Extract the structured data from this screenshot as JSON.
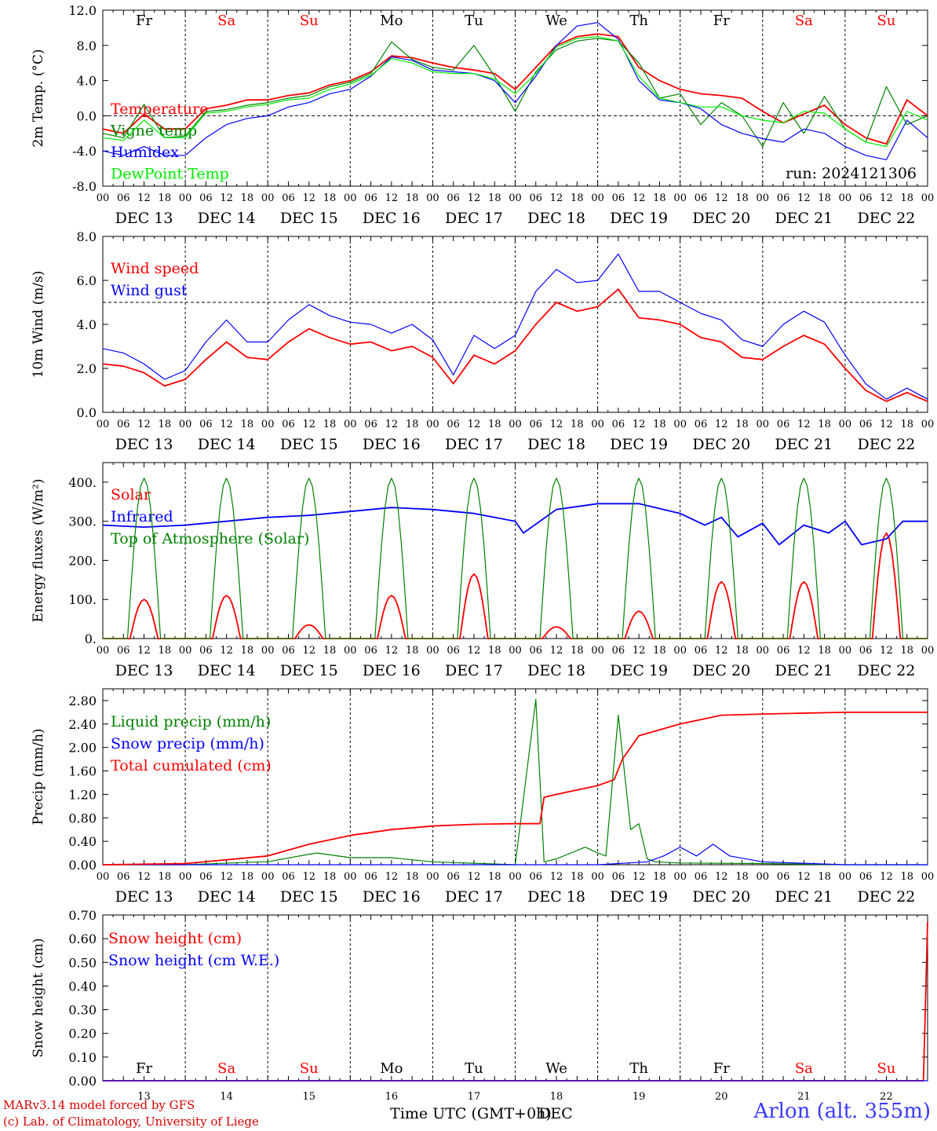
{
  "page": {
    "footer": {
      "credit_line1": "MARv3.14 model forced by GFS",
      "credit_line2": "(c) Lab. of Climatology, University of Liege",
      "station": "Arlon (alt. 355m)",
      "time_axis_label": "Time UTC (GMT+0h)",
      "month_label": "DEC"
    },
    "colors": {
      "red": "#ff0000",
      "darkgreen": "#008000",
      "blue": "#0000ff",
      "lightgreen": "#00ee00"
    }
  },
  "chart_data": [
    {
      "id": "temp",
      "type": "line",
      "ylabel": "2m Temp. (°C)",
      "ylim": [
        -8,
        12
      ],
      "yticks": [
        "-8.0",
        "-4.0",
        "0.0",
        "4.0",
        "8.0",
        "12.0"
      ],
      "ytick_values": [
        -8,
        -4,
        0,
        4,
        8,
        12
      ],
      "dashed_y": 0,
      "annotation": "run: 2024121306",
      "day_names": [
        "Fr",
        "Sa",
        "Su",
        "Mo",
        "Tu",
        "We",
        "Th",
        "Fr",
        "Sa",
        "Su"
      ],
      "weekend_flags": [
        false,
        true,
        true,
        false,
        false,
        false,
        false,
        false,
        true,
        true
      ],
      "day_labels": [
        "DEC 13",
        "DEC 14",
        "DEC 15",
        "DEC 16",
        "DEC 17",
        "DEC 18",
        "DEC 19",
        "DEC 20",
        "DEC 21",
        "DEC 22"
      ],
      "hour_labels": [
        "00",
        "06",
        "12",
        "18"
      ],
      "x_unit": "days from DEC 13 00UTC",
      "series": [
        {
          "name": "Temperature",
          "color": "#ff0000",
          "x": [
            0,
            0.25,
            0.5,
            0.75,
            1.0,
            1.25,
            1.5,
            1.75,
            2.0,
            2.25,
            2.5,
            2.75,
            3.0,
            3.25,
            3.5,
            3.75,
            4.0,
            4.25,
            4.5,
            4.75,
            5.0,
            5.25,
            5.5,
            5.75,
            6.0,
            6.25,
            6.5,
            6.75,
            7.0,
            7.25,
            7.5,
            7.75,
            8.0,
            8.25,
            8.5,
            8.75,
            9.0,
            9.25,
            9.5,
            9.75,
            10.0
          ],
          "values": [
            -1.5,
            -2.0,
            0.2,
            -1.5,
            -1.5,
            0.8,
            1.2,
            1.8,
            1.8,
            2.3,
            2.6,
            3.5,
            4.0,
            5.0,
            6.8,
            6.6,
            6.0,
            5.5,
            5.2,
            4.8,
            3.0,
            5.5,
            8.0,
            9.0,
            9.3,
            9.0,
            5.5,
            4.0,
            3.0,
            2.5,
            2.3,
            2.0,
            0.5,
            -0.8,
            0.2,
            1.2,
            -1.0,
            -2.5,
            -3.2,
            1.8,
            0.0
          ]
        },
        {
          "name": "Vigne temp",
          "color": "#008000",
          "x": [
            0,
            0.25,
            0.5,
            0.75,
            1.0,
            1.25,
            1.5,
            1.75,
            2.0,
            2.25,
            2.5,
            2.75,
            3.0,
            3.25,
            3.5,
            3.75,
            4.0,
            4.25,
            4.5,
            4.75,
            5.0,
            5.25,
            5.5,
            5.75,
            6.0,
            6.25,
            6.5,
            6.75,
            7.0,
            7.25,
            7.5,
            7.75,
            8.0,
            8.25,
            8.5,
            8.75,
            9.0,
            9.25,
            9.5,
            9.75,
            10.0
          ],
          "values": [
            -2.0,
            -2.5,
            1.3,
            -2.5,
            -2.3,
            0.5,
            0.7,
            1.2,
            1.5,
            2.0,
            2.3,
            3.3,
            3.8,
            4.8,
            8.4,
            6.4,
            5.5,
            5.2,
            8.0,
            4.5,
            0.5,
            5.0,
            7.5,
            8.5,
            8.8,
            8.5,
            6.0,
            2.0,
            2.5,
            -1.0,
            1.5,
            0.0,
            -3.5,
            1.5,
            -2.0,
            2.2,
            -1.5,
            -3.0,
            3.3,
            -1.0,
            0.0
          ]
        },
        {
          "name": "Humidex",
          "color": "#0000ff",
          "x": [
            0,
            0.25,
            0.5,
            0.75,
            1.0,
            1.25,
            1.5,
            1.75,
            2.0,
            2.25,
            2.5,
            2.75,
            3.0,
            3.25,
            3.5,
            3.75,
            4.0,
            4.25,
            4.5,
            4.75,
            5.0,
            5.25,
            5.5,
            5.75,
            6.0,
            6.25,
            6.5,
            6.75,
            7.0,
            7.25,
            7.5,
            7.75,
            8.0,
            8.25,
            8.5,
            8.75,
            9.0,
            9.25,
            9.5,
            9.75,
            10.0
          ],
          "values": [
            -4.0,
            -4.5,
            -3.5,
            -4.5,
            -4.5,
            -2.5,
            -1.0,
            -0.3,
            0.0,
            1.0,
            1.5,
            2.5,
            3.0,
            4.5,
            6.7,
            6.3,
            5.2,
            5.0,
            4.8,
            4.0,
            1.5,
            4.5,
            8.0,
            10.2,
            10.6,
            8.7,
            4.0,
            1.8,
            1.5,
            0.8,
            -1.0,
            -2.0,
            -2.6,
            -3.0,
            -1.5,
            -2.0,
            -3.5,
            -4.5,
            -5.0,
            -0.5,
            -2.5
          ]
        },
        {
          "name": "DewPoint Temp",
          "color": "#00ee00",
          "x": [
            0,
            0.25,
            0.5,
            0.75,
            1.0,
            1.25,
            1.5,
            1.75,
            2.0,
            2.25,
            2.5,
            2.75,
            3.0,
            3.25,
            3.5,
            3.75,
            4.0,
            4.25,
            4.5,
            4.75,
            5.0,
            5.25,
            5.5,
            5.75,
            6.0,
            6.25,
            6.5,
            6.75,
            7.0,
            7.25,
            7.5,
            7.75,
            8.0,
            8.25,
            8.5,
            8.75,
            9.0,
            9.25,
            9.5,
            9.75,
            10.0
          ],
          "values": [
            -2.5,
            -2.8,
            -0.5,
            -2.5,
            -2.5,
            0.3,
            0.5,
            1.0,
            1.3,
            1.8,
            2.0,
            3.0,
            3.6,
            4.6,
            6.5,
            6.0,
            5.0,
            4.8,
            4.8,
            4.2,
            2.5,
            4.8,
            7.8,
            8.8,
            9.0,
            8.5,
            4.5,
            2.0,
            1.5,
            1.0,
            1.0,
            0.0,
            -0.5,
            -0.8,
            0.5,
            0.3,
            -1.5,
            -3.0,
            -3.5,
            0.5,
            -0.5
          ]
        }
      ]
    },
    {
      "id": "wind",
      "type": "line",
      "ylabel": "10m Wind (m/s)",
      "ylim": [
        0,
        8
      ],
      "yticks": [
        "0.0",
        "2.0",
        "4.0",
        "6.0",
        "8.0"
      ],
      "ytick_values": [
        0,
        2,
        4,
        6,
        8
      ],
      "dashed_y": 5,
      "day_labels": [
        "DEC 13",
        "DEC 14",
        "DEC 15",
        "DEC 16",
        "DEC 17",
        "DEC 18",
        "DEC 19",
        "DEC 20",
        "DEC 21",
        "DEC 22"
      ],
      "hour_labels": [
        "00",
        "06",
        "12",
        "18"
      ],
      "series": [
        {
          "name": "Wind speed",
          "color": "#ff0000",
          "x": [
            0,
            0.25,
            0.5,
            0.75,
            1.0,
            1.25,
            1.5,
            1.75,
            2.0,
            2.25,
            2.5,
            2.75,
            3.0,
            3.25,
            3.5,
            3.75,
            4.0,
            4.25,
            4.5,
            4.75,
            5.0,
            5.25,
            5.5,
            5.75,
            6.0,
            6.25,
            6.5,
            6.75,
            7.0,
            7.25,
            7.5,
            7.75,
            8.0,
            8.25,
            8.5,
            8.75,
            9.0,
            9.25,
            9.5,
            9.75,
            10.0
          ],
          "values": [
            2.2,
            2.1,
            1.8,
            1.2,
            1.5,
            2.4,
            3.2,
            2.5,
            2.4,
            3.2,
            3.8,
            3.4,
            3.1,
            3.2,
            2.8,
            3.0,
            2.5,
            1.3,
            2.6,
            2.2,
            2.8,
            4.0,
            5.0,
            4.6,
            4.8,
            5.6,
            4.3,
            4.2,
            4.0,
            3.4,
            3.2,
            2.5,
            2.4,
            3.0,
            3.5,
            3.1,
            2.0,
            1.0,
            0.5,
            0.9,
            0.5
          ]
        },
        {
          "name": "Wind gust",
          "color": "#0000ff",
          "x": [
            0,
            0.25,
            0.5,
            0.75,
            1.0,
            1.25,
            1.5,
            1.75,
            2.0,
            2.25,
            2.5,
            2.75,
            3.0,
            3.25,
            3.5,
            3.75,
            4.0,
            4.25,
            4.5,
            4.75,
            5.0,
            5.25,
            5.5,
            5.75,
            6.0,
            6.25,
            6.5,
            6.75,
            7.0,
            7.25,
            7.5,
            7.75,
            8.0,
            8.25,
            8.5,
            8.75,
            9.0,
            9.25,
            9.5,
            9.75,
            10.0
          ],
          "values": [
            2.9,
            2.7,
            2.2,
            1.5,
            1.9,
            3.2,
            4.2,
            3.2,
            3.2,
            4.2,
            4.9,
            4.4,
            4.1,
            4.0,
            3.6,
            4.0,
            3.3,
            1.7,
            3.5,
            2.9,
            3.5,
            5.5,
            6.5,
            5.9,
            6.0,
            7.2,
            5.5,
            5.5,
            5.0,
            4.5,
            4.2,
            3.3,
            3.0,
            4.0,
            4.6,
            4.1,
            2.6,
            1.3,
            0.6,
            1.1,
            0.6
          ]
        }
      ]
    },
    {
      "id": "flux",
      "type": "line",
      "ylabel": "Energy fluxes (W/m²)",
      "ylim": [
        0,
        450
      ],
      "yticks": [
        "0.",
        "100.",
        "200.",
        "300.",
        "400."
      ],
      "ytick_values": [
        0,
        100,
        200,
        300,
        400
      ],
      "day_labels": [
        "DEC 13",
        "DEC 14",
        "DEC 15",
        "DEC 16",
        "DEC 17",
        "DEC 18",
        "DEC 19",
        "DEC 20",
        "DEC 21",
        "DEC 22"
      ],
      "hour_labels": [
        "00",
        "06",
        "12",
        "18"
      ],
      "series": [
        {
          "name": "Solar",
          "color": "#ff0000",
          "daily_peak": [
            100,
            110,
            35,
            110,
            165,
            30,
            70,
            145,
            145,
            270
          ]
        },
        {
          "name": "Infrared",
          "color": "#0000ff",
          "x": [
            0,
            0.5,
            1.0,
            1.5,
            2.0,
            2.5,
            3.0,
            3.5,
            4.0,
            4.25,
            4.5,
            5.0,
            5.1,
            5.5,
            6.0,
            6.5,
            7.0,
            7.3,
            7.5,
            7.7,
            8.0,
            8.2,
            8.5,
            8.8,
            9.0,
            9.2,
            9.5,
            9.7,
            10.0
          ],
          "values": [
            290,
            285,
            290,
            300,
            310,
            315,
            325,
            335,
            330,
            325,
            320,
            300,
            270,
            330,
            345,
            345,
            320,
            290,
            310,
            260,
            295,
            240,
            290,
            270,
            300,
            240,
            255,
            300,
            300
          ]
        },
        {
          "name": "Top of Atmosphere (Solar)",
          "color": "#008000",
          "daily_peak": [
            410,
            410,
            410,
            410,
            410,
            410,
            410,
            410,
            410,
            410
          ]
        }
      ]
    },
    {
      "id": "precip",
      "type": "line",
      "ylabel": "Precip (mm/h)",
      "ylim": [
        0,
        3.0
      ],
      "yticks": [
        "0.00",
        "0.40",
        "0.80",
        "1.20",
        "1.60",
        "2.00",
        "2.40",
        "2.80"
      ],
      "ytick_values": [
        0,
        0.4,
        0.8,
        1.2,
        1.6,
        2.0,
        2.4,
        2.8
      ],
      "day_labels": [
        "DEC 13",
        "DEC 14",
        "DEC 15",
        "DEC 16",
        "DEC 17",
        "DEC 18",
        "DEC 19",
        "DEC 20",
        "DEC 21",
        "DEC 22"
      ],
      "hour_labels": [
        "00",
        "06",
        "12",
        "18"
      ],
      "series": [
        {
          "name": "Liquid precip (mm/h)",
          "color": "#008000",
          "x": [
            0,
            1.0,
            1.9,
            2.0,
            2.5,
            2.6,
            3.0,
            3.5,
            4.0,
            5.0,
            5.25,
            5.35,
            5.5,
            5.85,
            6.0,
            6.1,
            6.25,
            6.4,
            6.5,
            6.6,
            6.7,
            7.0,
            8.0,
            9.0,
            10.0
          ],
          "values": [
            0,
            0,
            0.05,
            0.05,
            0.18,
            0.2,
            0.12,
            0.12,
            0.05,
            0,
            2.82,
            0.05,
            0.1,
            0.3,
            0.2,
            0.15,
            2.55,
            0.6,
            0.7,
            0.1,
            0.05,
            0.03,
            0.02,
            0,
            0
          ]
        },
        {
          "name": "Snow precip (mm/h)",
          "color": "#0000ff",
          "x": [
            0,
            6.0,
            6.6,
            6.8,
            7.0,
            7.2,
            7.4,
            7.6,
            8.0,
            9.0,
            10.0
          ],
          "values": [
            0,
            0,
            0.05,
            0.15,
            0.3,
            0.15,
            0.35,
            0.15,
            0.05,
            0,
            0
          ]
        },
        {
          "name": "Total cumulated (cm)",
          "color": "#ff0000",
          "x": [
            0,
            1.0,
            2.0,
            2.5,
            3.0,
            3.5,
            4.0,
            4.5,
            5.0,
            5.3,
            5.35,
            5.5,
            6.0,
            6.2,
            6.3,
            6.5,
            7.0,
            7.5,
            8.0,
            9.0,
            10.0
          ],
          "values": [
            0,
            0.02,
            0.15,
            0.35,
            0.5,
            0.6,
            0.66,
            0.69,
            0.7,
            0.7,
            1.15,
            1.2,
            1.35,
            1.45,
            1.8,
            2.2,
            2.4,
            2.55,
            2.57,
            2.6,
            2.6
          ]
        }
      ]
    },
    {
      "id": "snow",
      "type": "line",
      "ylabel": "Snow height (cm)",
      "ylim": [
        0,
        0.7
      ],
      "yticks": [
        "0.00",
        "0.10",
        "0.20",
        "0.30",
        "0.40",
        "0.50",
        "0.60",
        "0.70"
      ],
      "ytick_values": [
        0,
        0.1,
        0.2,
        0.3,
        0.4,
        0.5,
        0.6,
        0.7
      ],
      "day_names": [
        "Fr",
        "Sa",
        "Su",
        "Mo",
        "Tu",
        "We",
        "Th",
        "Fr",
        "Sa",
        "Su"
      ],
      "weekend_flags": [
        false,
        true,
        true,
        false,
        false,
        false,
        false,
        false,
        true,
        true
      ],
      "day_numbers": [
        "13",
        "14",
        "15",
        "16",
        "17",
        "18",
        "19",
        "20",
        "21",
        "22"
      ],
      "series": [
        {
          "name": "Snow height (cm)",
          "color": "#ff0000",
          "x": [
            0,
            9.95,
            10.0
          ],
          "values": [
            0,
            0,
            0.67
          ]
        },
        {
          "name": "Snow height (cm W.E.)",
          "color": "#0000ff",
          "x": [
            0,
            10.0
          ],
          "values": [
            0,
            0
          ]
        }
      ]
    }
  ]
}
